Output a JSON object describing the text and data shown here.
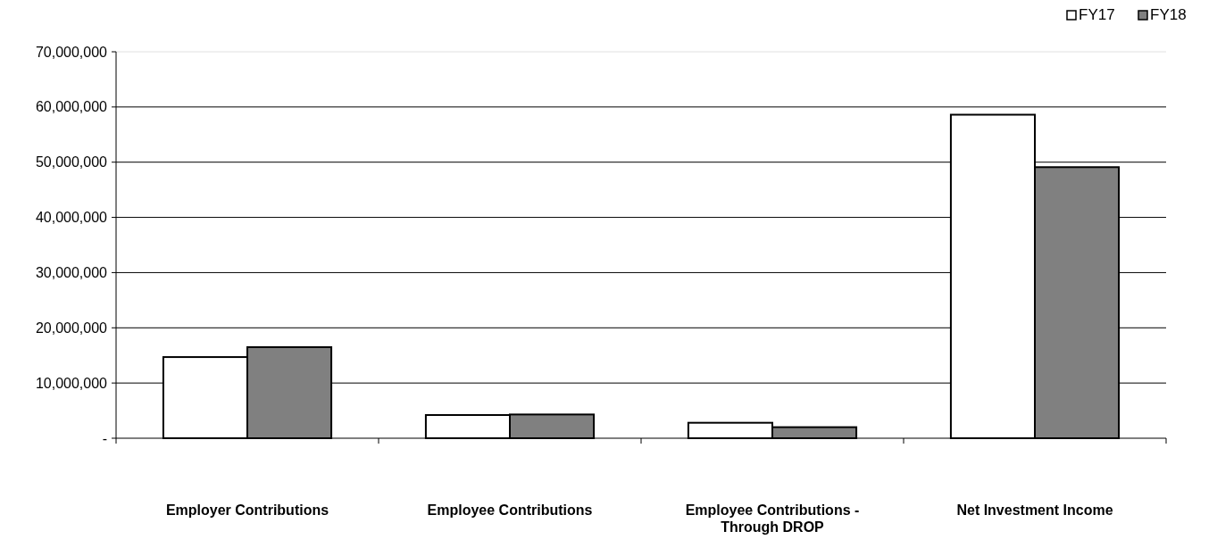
{
  "chart_data": {
    "type": "bar",
    "categories": [
      "Employer Contributions",
      "Employee Contributions",
      "Employee Contributions - Through DROP",
      "Net Investment Income"
    ],
    "series": [
      {
        "name": "FY17",
        "color": "#ffffff",
        "values": [
          14700000,
          4200000,
          2800000,
          58600000
        ]
      },
      {
        "name": "FY18",
        "color": "#808080",
        "values": [
          16500000,
          4300000,
          2000000,
          49100000
        ]
      }
    ],
    "ylim": [
      0,
      70000000
    ],
    "yticks": [
      {
        "value": 0,
        "label": "-"
      },
      {
        "value": 10000000,
        "label": "10,000,000"
      },
      {
        "value": 20000000,
        "label": "20,000,000"
      },
      {
        "value": 30000000,
        "label": "30,000,000"
      },
      {
        "value": 40000000,
        "label": "40,000,000"
      },
      {
        "value": 50000000,
        "label": "50,000,000"
      },
      {
        "value": 60000000,
        "label": "60,000,000"
      },
      {
        "value": 70000000,
        "label": "70,000,000"
      }
    ],
    "grid": "y",
    "legend": "top right"
  }
}
